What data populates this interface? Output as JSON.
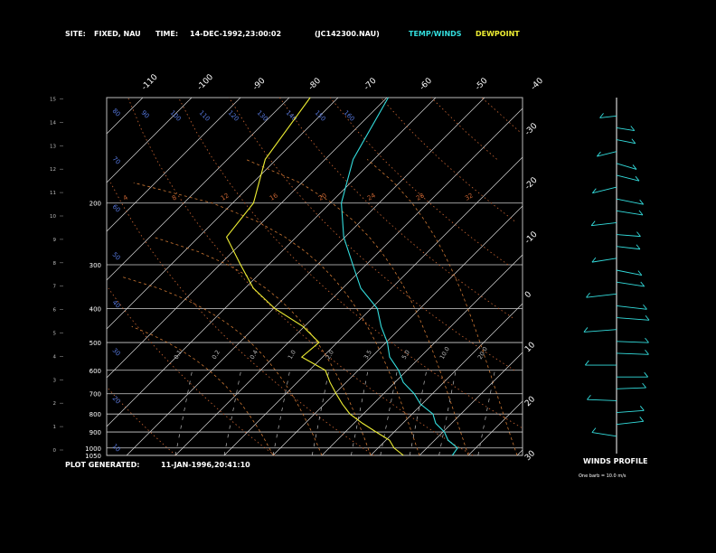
{
  "header": {
    "site_label": "SITE:",
    "site_value": "FIXED, NAU",
    "time_label": "TIME:",
    "time_value": "14-DEC-1992,23:00:02",
    "file_value": "(JC142300.NAU)",
    "temp_legend": "TEMP/WINDS",
    "dew_legend": "DEWPOINT"
  },
  "footer": {
    "generated_label": "PLOT GENERATED:",
    "generated_value": "11-JAN-1996,20:41:10"
  },
  "wind_panel": {
    "title": "WINDS PROFILE",
    "note": "One barb = 10.0 m/s"
  },
  "colors": {
    "temp": "#33dddd",
    "dewpoint": "#eeee33",
    "isobar": "#cfcfcf",
    "isotherm": "#d8d8d8",
    "dry_adiabat": "#cc6633",
    "moist_adiabat": "#cc7733",
    "mixing_ratio": "#bbbbbb",
    "theta_label": "#5577dd"
  },
  "chart_data": {
    "type": "line",
    "title": "",
    "pressure_levels": [
      400,
      300,
      200,
      500,
      600,
      700,
      800,
      900,
      1000,
      1050
    ],
    "height_ticks": [
      "0",
      "1",
      "2",
      "3",
      "4",
      "5",
      "6",
      "7",
      "8",
      "9",
      "10",
      "11",
      "12",
      "13",
      "14",
      "15"
    ],
    "isotherm_labels_top": [
      "-110",
      "-100",
      "-90",
      "-80",
      "-70",
      "-60",
      "-50",
      "-40"
    ],
    "isotherm_labels_right": [
      "-30",
      "-20",
      "-10",
      "0",
      "10",
      "20",
      "30"
    ],
    "dry_adiabat_labels": [
      "4",
      "8",
      "12",
      "16",
      "20",
      "24",
      "28",
      "32"
    ],
    "theta_labels": [
      "10",
      "20",
      "30",
      "40",
      "50",
      "60",
      "70",
      "80",
      "90",
      "100",
      "110",
      "120",
      "130",
      "140",
      "150",
      "160"
    ],
    "mixing_ratio_labels": [
      "0.1",
      "0.2",
      "0.4",
      "1.0",
      "2.0",
      "3.5",
      "5.0",
      "10.0",
      "20.0"
    ],
    "series": [
      {
        "name": "TEMP/WINDS",
        "pressure": [
          1050,
          1000,
          950,
          900,
          850,
          800,
          750,
          700,
          650,
          600,
          550,
          500,
          450,
          400,
          350,
          300,
          250,
          200,
          150,
          100
        ],
        "temperature": [
          17,
          16,
          13,
          10,
          7,
          4,
          0,
          -4,
          -8,
          -12,
          -16,
          -20,
          -24,
          -29,
          -36,
          -43,
          -50,
          -58,
          -64,
          -70
        ]
      },
      {
        "name": "DEWPOINT",
        "pressure": [
          1050,
          1000,
          950,
          900,
          850,
          800,
          750,
          700,
          650,
          600,
          550,
          500,
          450,
          400,
          350,
          300,
          250,
          200,
          150,
          100
        ],
        "dewpoint": [
          7,
          3,
          1,
          -4,
          -8,
          -13,
          -16,
          -20,
          -23,
          -27,
          -34,
          -34,
          -40,
          -50,
          -58,
          -66,
          -74,
          -76,
          -82,
          -86
        ]
      }
    ],
    "winds": {
      "heights": [
        0.5,
        1.0,
        1.5,
        2.0,
        2.5,
        3.0,
        3.5,
        4.0,
        4.5,
        5.0,
        5.5,
        6.0,
        6.5,
        7.0,
        7.5,
        8.0,
        8.5,
        9.0,
        9.5,
        10.0,
        10.5,
        11.0,
        11.5,
        12.0,
        12.5,
        13.0,
        13.5,
        14.0
      ],
      "direction": [
        250,
        255,
        260,
        265,
        265,
        270,
        270,
        275,
        275,
        280,
        280,
        285,
        285,
        290,
        295,
        290,
        285,
        280,
        285,
        290,
        295,
        300,
        300,
        305,
        300,
        295,
        290,
        285
      ],
      "speed": [
        18,
        20,
        20,
        22,
        22,
        24,
        24,
        25,
        25,
        26,
        26,
        24,
        24,
        22,
        20,
        18,
        16,
        16,
        18,
        20,
        22,
        20,
        18,
        16,
        14,
        12,
        10,
        8
      ]
    }
  }
}
